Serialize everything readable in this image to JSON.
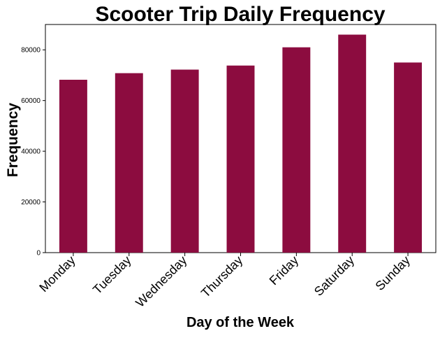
{
  "chart_data": {
    "type": "bar",
    "title": "Scooter Trip Daily Frequency",
    "xlabel": "Day of the Week",
    "ylabel": "Frequency",
    "categories": [
      "Monday",
      "Tuesday",
      "Wednesday",
      "Thursday",
      "Friday",
      "Saturday",
      "Sunday"
    ],
    "values": [
      68200,
      70800,
      72200,
      73800,
      81000,
      86000,
      75000
    ],
    "ylim": [
      0,
      90000
    ],
    "yticks": [
      0,
      20000,
      40000,
      60000,
      80000
    ],
    "ytick_labels": [
      "0",
      "20000",
      "40000",
      "60000",
      "80000"
    ],
    "bar_color": "#8c0c3f",
    "grid": false,
    "legend": false
  }
}
